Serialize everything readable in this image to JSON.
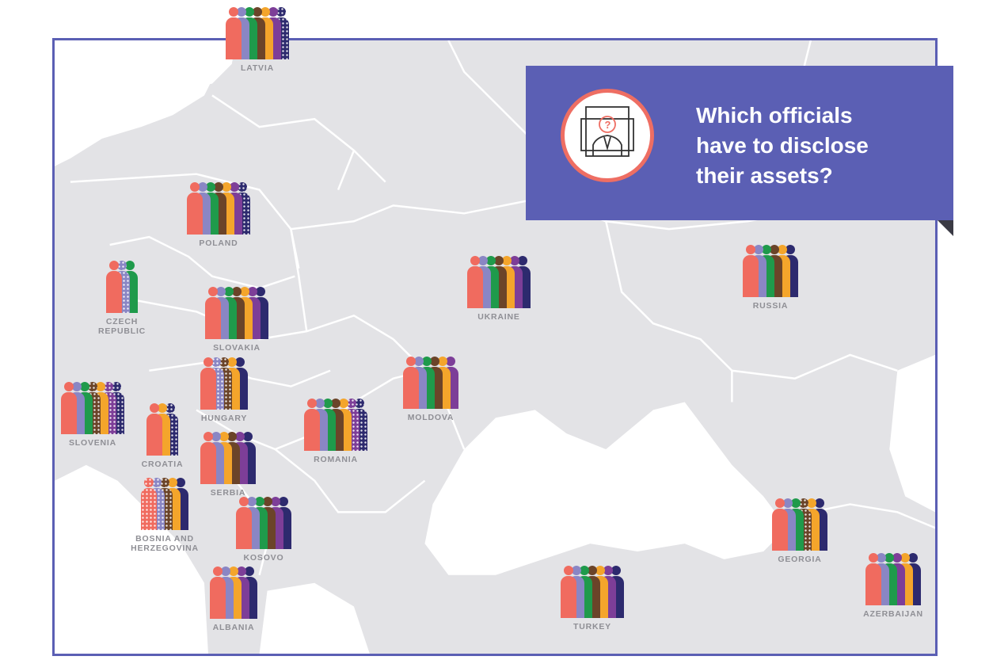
{
  "title": "Which officials\nhave to disclose\ntheir assets?",
  "icon": "official-portrait-question-icon",
  "colors": {
    "coral": "#f06b5f",
    "lavender": "#8a86c4",
    "green": "#1f9a4b",
    "brown": "#6b4429",
    "orange": "#f4a52b",
    "purple": "#7d3e98",
    "navy": "#2d2a6e",
    "frame": "#5b5fb4",
    "label": "#8f8f95"
  },
  "countries": [
    {
      "id": "latvia",
      "label": "LATVIA",
      "figures": [
        "coral",
        "lavender",
        "green",
        "brown",
        "orange",
        "purple",
        "navy-patt"
      ]
    },
    {
      "id": "poland",
      "label": "POLAND",
      "figures": [
        "coral",
        "lavender",
        "green",
        "brown",
        "orange",
        "purple",
        "navy-patt"
      ]
    },
    {
      "id": "czech-republic",
      "label": "CZECH\nREPUBLIC",
      "figures": [
        "coral",
        "lavender-patt",
        "green"
      ]
    },
    {
      "id": "slovakia",
      "label": "SLOVAKIA",
      "figures": [
        "coral",
        "lavender",
        "green",
        "brown",
        "orange",
        "purple",
        "navy"
      ]
    },
    {
      "id": "ukraine",
      "label": "UKRAINE",
      "figures": [
        "coral",
        "lavender",
        "green",
        "brown",
        "orange",
        "purple",
        "navy"
      ]
    },
    {
      "id": "russia",
      "label": "RUSSIA",
      "figures": [
        "coral",
        "lavender",
        "green",
        "brown",
        "orange",
        "navy"
      ]
    },
    {
      "id": "hungary",
      "label": "HUNGARY",
      "figures": [
        "coral",
        "lavender-patt",
        "brown-patt",
        "orange",
        "navy"
      ]
    },
    {
      "id": "slovenia",
      "label": "SLOVENIA",
      "figures": [
        "coral",
        "lavender",
        "green",
        "brown-patt",
        "orange",
        "purple-patt",
        "navy-patt"
      ]
    },
    {
      "id": "croatia",
      "label": "CROATIA",
      "figures": [
        "coral",
        "orange",
        "navy-patt"
      ]
    },
    {
      "id": "moldova",
      "label": "MOLDOVA",
      "figures": [
        "coral",
        "lavender",
        "green",
        "brown",
        "orange",
        "purple"
      ]
    },
    {
      "id": "romania",
      "label": "ROMANIA",
      "figures": [
        "coral",
        "lavender",
        "green",
        "brown",
        "orange",
        "purple-patt",
        "navy-patt"
      ]
    },
    {
      "id": "serbia",
      "label": "SERBIA",
      "figures": [
        "coral",
        "lavender",
        "orange",
        "brown",
        "purple",
        "navy"
      ]
    },
    {
      "id": "bosnia",
      "label": "BOSNIA AND\nHERZEGOVINA",
      "figures": [
        "coral-patt",
        "lavender-patt",
        "brown-patt",
        "orange",
        "navy"
      ]
    },
    {
      "id": "kosovo",
      "label": "KOSOVO",
      "figures": [
        "coral",
        "lavender",
        "green",
        "brown",
        "purple",
        "navy"
      ]
    },
    {
      "id": "georgia",
      "label": "GEORGIA",
      "figures": [
        "coral",
        "lavender",
        "green",
        "brown-patt",
        "orange",
        "navy"
      ]
    },
    {
      "id": "albania",
      "label": "ALBANIA",
      "figures": [
        "coral",
        "lavender",
        "orange",
        "purple",
        "navy"
      ]
    },
    {
      "id": "turkey",
      "label": "TURKEY",
      "figures": [
        "coral",
        "lavender",
        "green",
        "brown",
        "orange",
        "purple",
        "navy"
      ]
    },
    {
      "id": "azerbaijan",
      "label": "AZERBAIJAN",
      "figures": [
        "coral",
        "lavender",
        "green",
        "purple",
        "orange",
        "navy"
      ]
    }
  ]
}
